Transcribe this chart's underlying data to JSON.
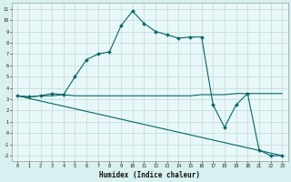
{
  "xlabel": "Humidex (Indice chaleur)",
  "xlim": [
    -0.5,
    23.5
  ],
  "ylim": [
    -2.5,
    11.5
  ],
  "xticks": [
    0,
    1,
    2,
    3,
    4,
    5,
    6,
    7,
    8,
    9,
    10,
    11,
    12,
    13,
    14,
    15,
    16,
    17,
    18,
    19,
    20,
    21,
    22,
    23
  ],
  "yticks": [
    -2,
    -1,
    0,
    1,
    2,
    3,
    4,
    5,
    6,
    7,
    8,
    9,
    10,
    11
  ],
  "bg_color": "#d8f0f0",
  "plot_bg_color": "#e8f8f8",
  "line_color": "#006868",
  "grid_color": "#c0d8d8",
  "series": [
    {
      "x": [
        0,
        1,
        2,
        3,
        4,
        5,
        6,
        7,
        8,
        9,
        10,
        11,
        12,
        13,
        14,
        15,
        16,
        17,
        18,
        19,
        20,
        21,
        22,
        23
      ],
      "y": [
        3.3,
        3.2,
        3.3,
        3.3,
        3.4,
        3.3,
        3.3,
        3.3,
        3.3,
        3.3,
        3.3,
        3.3,
        3.3,
        3.3,
        3.3,
        3.3,
        3.4,
        3.4,
        3.4,
        3.5,
        3.5,
        3.5,
        3.5,
        3.5
      ],
      "marker": false
    },
    {
      "x": [
        0,
        1,
        2,
        3,
        4,
        5,
        6,
        7,
        8,
        9,
        10,
        11,
        12,
        13,
        14,
        15,
        16,
        17,
        18,
        19,
        20,
        21,
        22,
        23
      ],
      "y": [
        3.3,
        3.2,
        3.3,
        3.5,
        3.4,
        5.0,
        6.5,
        7.0,
        7.2,
        9.5,
        10.8,
        9.7,
        9.0,
        8.7,
        8.4,
        8.5,
        8.5,
        2.5,
        0.5,
        2.5,
        3.5,
        -1.5,
        -2.0,
        -2.0
      ],
      "marker": true
    },
    {
      "x": [
        0,
        23
      ],
      "y": [
        3.3,
        -2.0
      ],
      "marker": false
    }
  ]
}
